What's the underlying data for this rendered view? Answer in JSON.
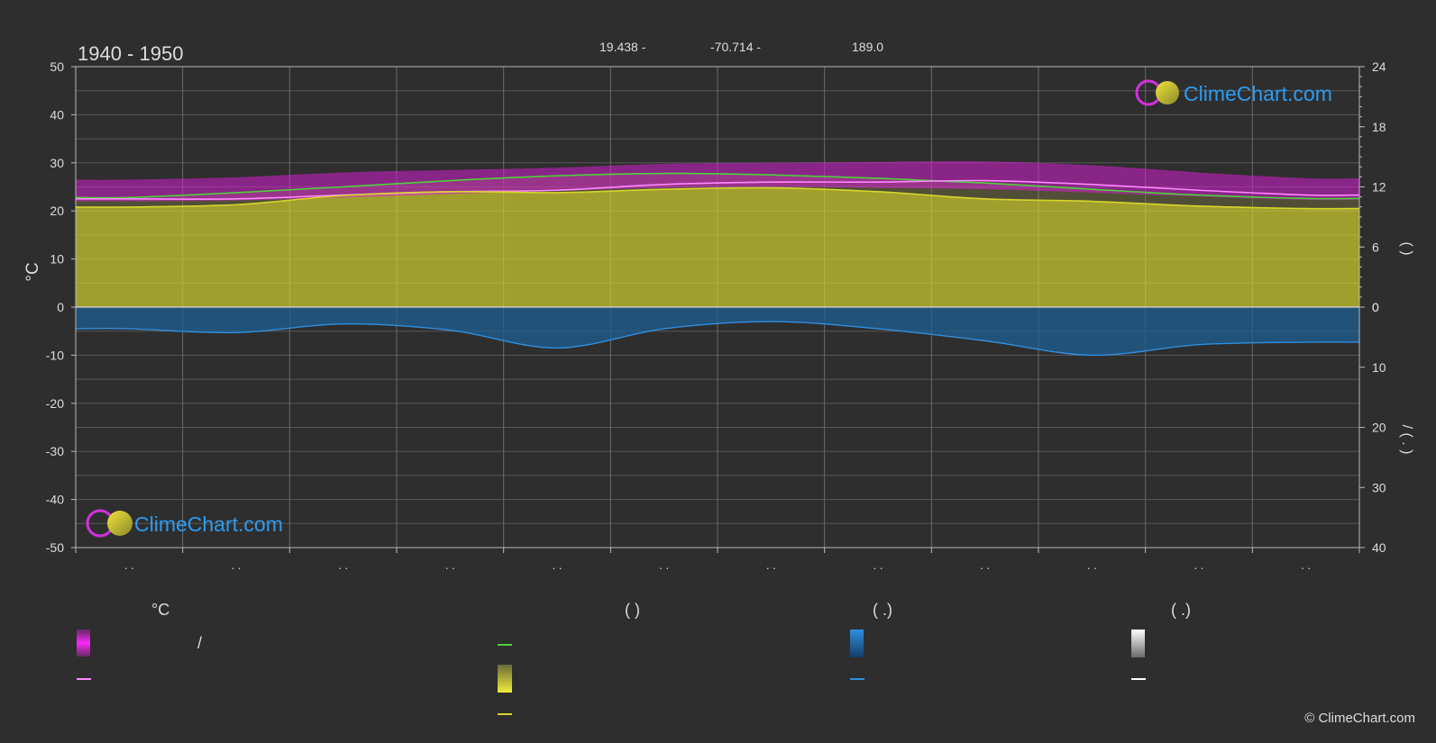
{
  "header": {
    "period": "1940 - 1950",
    "lat_text": "19.438 -",
    "lon_text": "-70.714 -",
    "elev_text": "189.0"
  },
  "watermark": {
    "text": "ClimeChart.com"
  },
  "copyright": "© ClimeChart.com",
  "chart_data": {
    "type": "area",
    "months": [
      ". .",
      ". .",
      ". .",
      ". .",
      ". .",
      ". .",
      ". .",
      ". .",
      ". .",
      ". .",
      ". .",
      ". ."
    ],
    "left_axis": {
      "label": "°C",
      "ylim": [
        -50,
        50
      ],
      "ticks": [
        "50",
        "40",
        "30",
        "20",
        "10",
        "0",
        "-10",
        "-20",
        "-30",
        "-40",
        "-50"
      ]
    },
    "right_axis_top": {
      "ticks": [
        "24",
        "18",
        "12",
        "6",
        "0"
      ],
      "label": "(   )"
    },
    "right_axis_bottom": {
      "ticks": [
        "0",
        "10",
        "20",
        "30",
        "40"
      ],
      "label": "/   (  .  )"
    },
    "series": [
      {
        "role": "max_min_band",
        "color": "#d51fcf",
        "upper": [
          26.5,
          27.0,
          28.0,
          28.5,
          29.0,
          29.8,
          30.0,
          30.2,
          30.3,
          29.5,
          28.0,
          26.8
        ],
        "lower": [
          22.0,
          22.2,
          22.8,
          23.5,
          24.2,
          24.8,
          25.0,
          24.8,
          24.5,
          23.8,
          23.0,
          22.3
        ]
      },
      {
        "role": "daylight",
        "color": "#4cd23a",
        "values": [
          22.8,
          23.8,
          25.0,
          26.3,
          27.3,
          27.8,
          27.5,
          26.8,
          25.8,
          24.5,
          23.3,
          22.6
        ]
      },
      {
        "role": "mean_max",
        "color": "#ff88ff",
        "values": [
          22.5,
          22.5,
          23.3,
          24.0,
          24.3,
          25.5,
          26.0,
          26.0,
          26.3,
          25.5,
          24.3,
          23.3
        ]
      },
      {
        "role": "sunshine",
        "color": "#d7d52d",
        "values": [
          20.8,
          21.3,
          23.2,
          24.0,
          23.8,
          24.5,
          24.8,
          24.0,
          22.5,
          22.0,
          21.0,
          20.5
        ]
      },
      {
        "role": "precipitation",
        "color": "#2f8fe0",
        "values": [
          -4.5,
          -5.3,
          -3.5,
          -4.8,
          -8.5,
          -4.5,
          -3.0,
          -4.5,
          -7.0,
          -10.0,
          -7.8,
          -7.3
        ]
      }
    ],
    "grid": true
  },
  "legend": {
    "col1": {
      "heading": "°C",
      "item1_text": "/"
    },
    "col2": {
      "heading": "(           )"
    },
    "col3": {
      "heading": "(    .)"
    },
    "col4": {
      "heading": "(    .)"
    }
  },
  "colors": {
    "background": "#2e2e2e",
    "grid": "#5a5a5a",
    "temp_band": "#d51fcf",
    "daylight": "#4cd23a",
    "sunshine": "#d7d52d",
    "precip": "#2f8fe0",
    "snow": "#ffffff"
  }
}
